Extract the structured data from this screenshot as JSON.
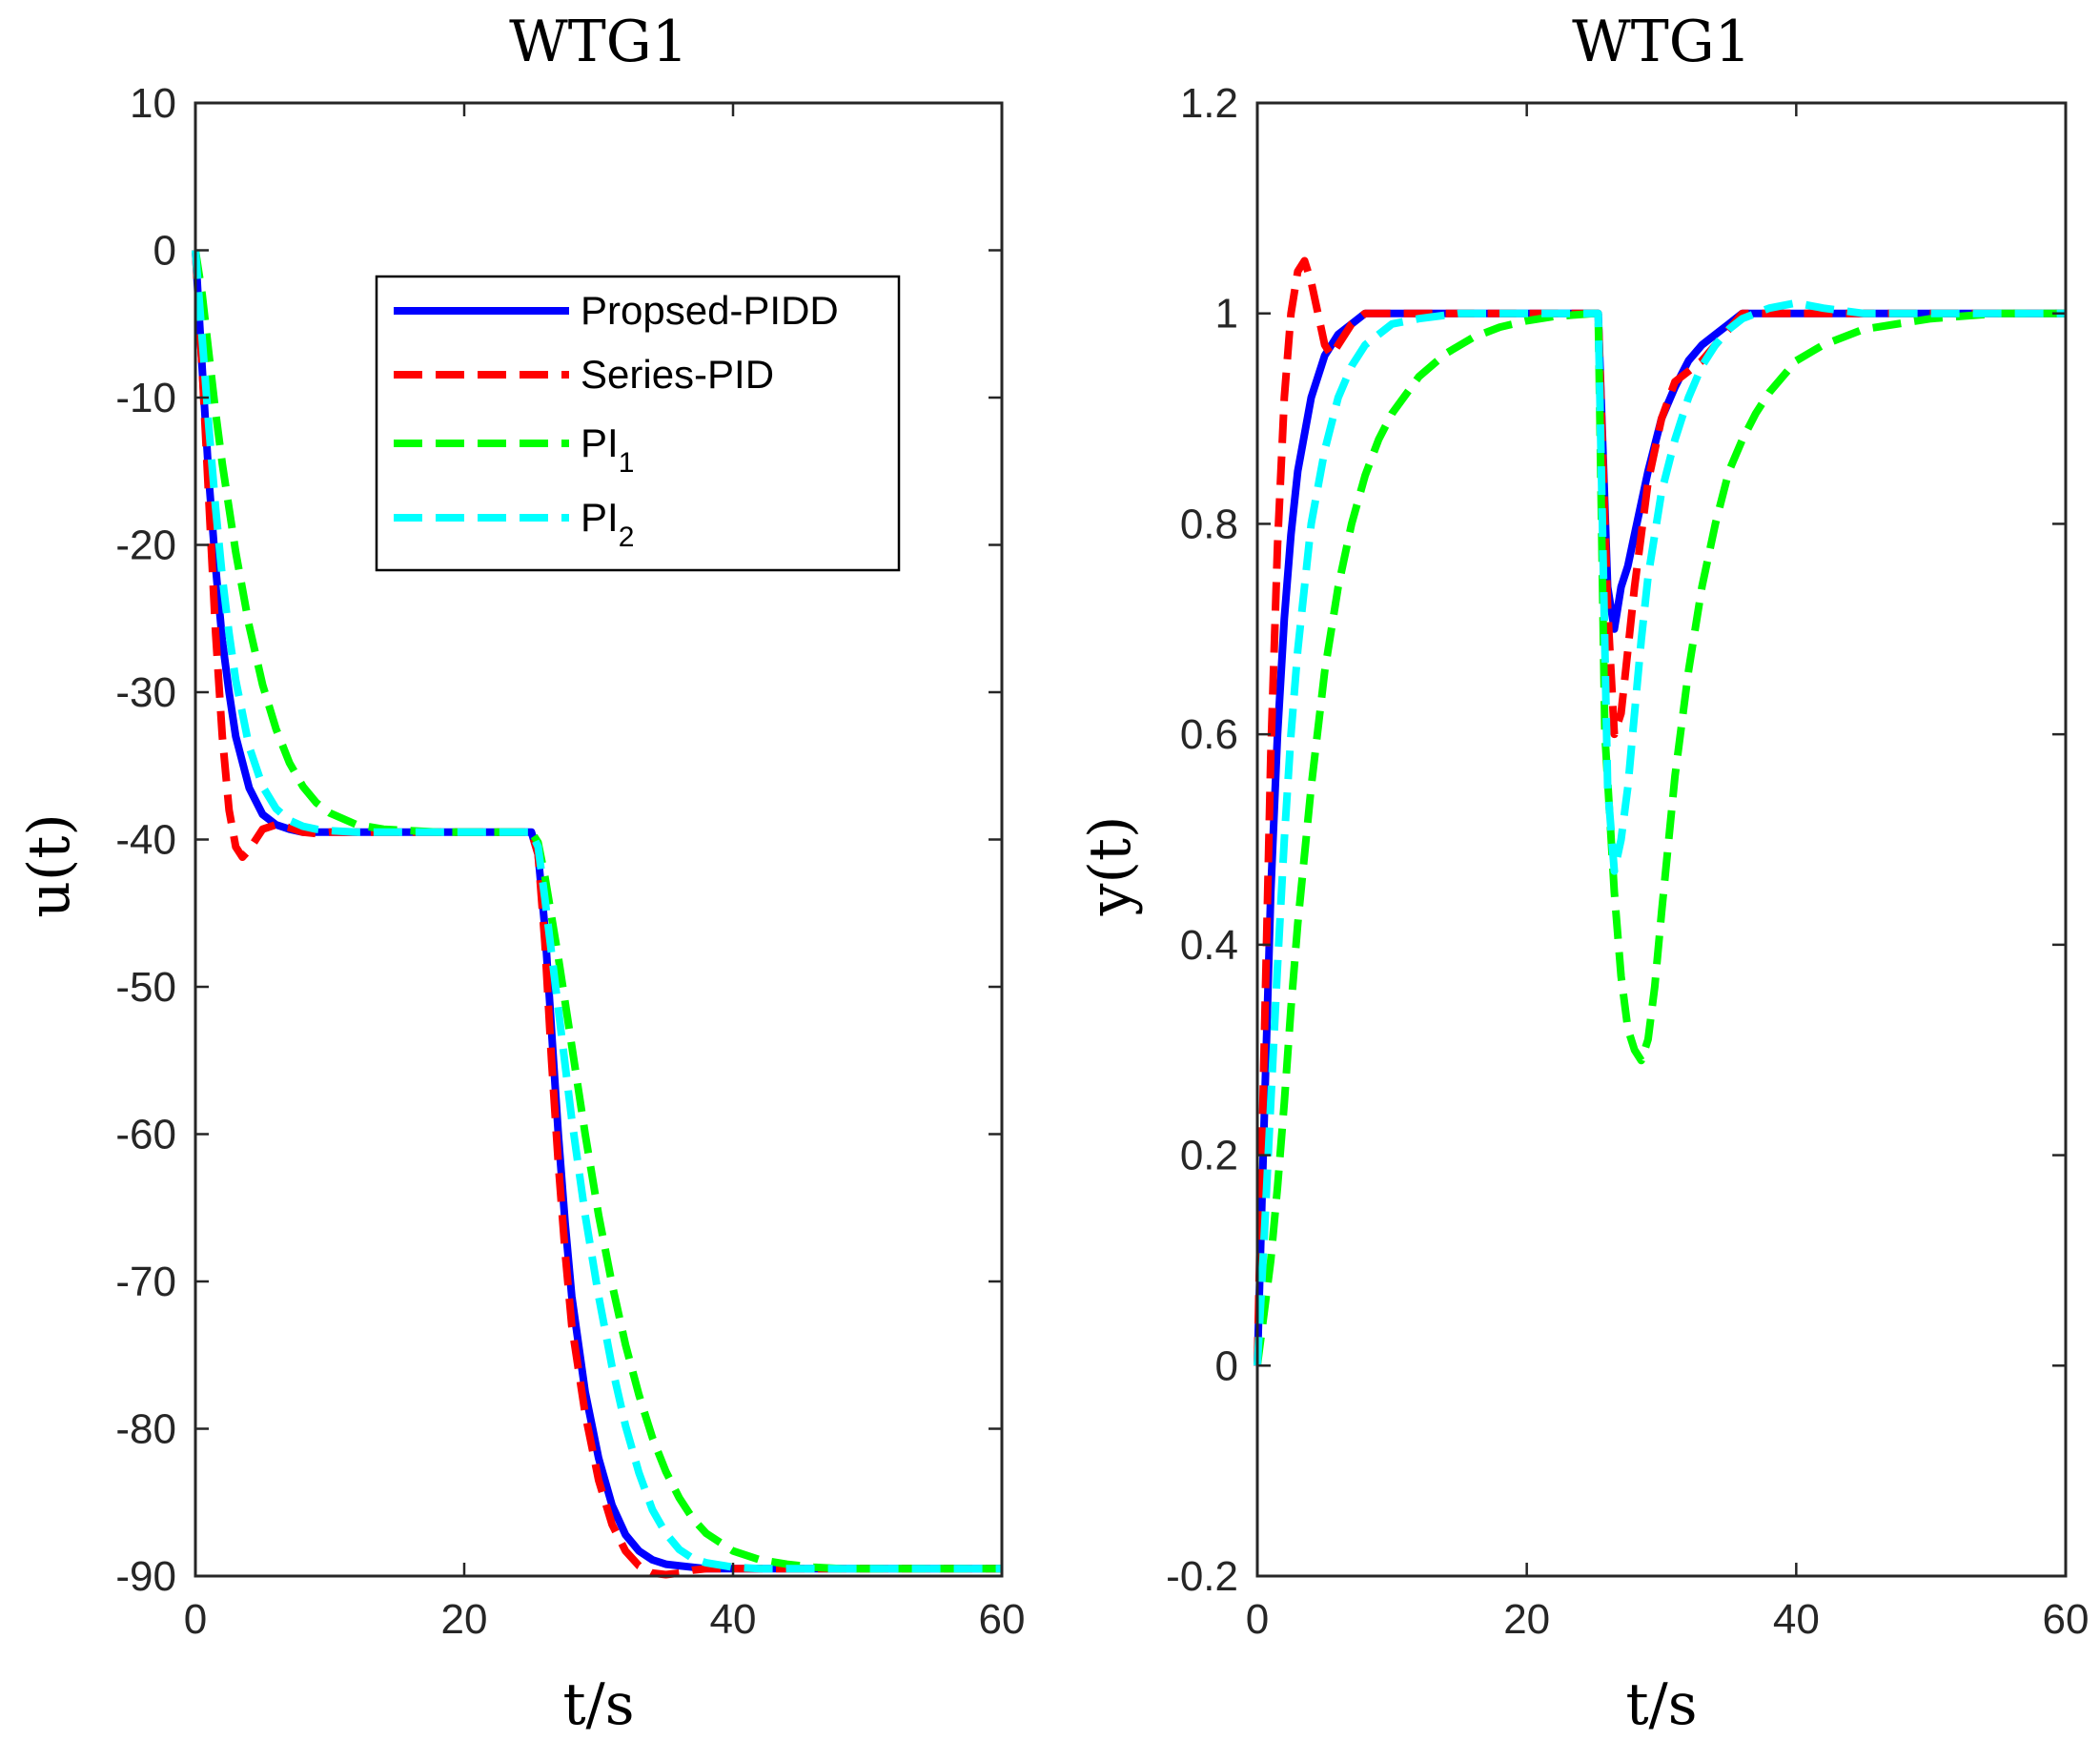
{
  "chart_data": [
    {
      "type": "line",
      "title": "WTG1",
      "xlabel": "t/s",
      "ylabel": "u(t)",
      "xlim": [
        0,
        60
      ],
      "ylim": [
        -90,
        10
      ],
      "xticks": [
        "0",
        "20",
        "40",
        "60"
      ],
      "yticks": [
        "10",
        "0",
        "-10",
        "-20",
        "-30",
        "-40",
        "-50",
        "-60",
        "-70",
        "-80",
        "-90"
      ],
      "grid": false,
      "legend": {
        "placement": "upper-center",
        "entries": [
          {
            "main": "Propsed-PIDD",
            "sub": "",
            "color": "#0000FF",
            "style": "solid"
          },
          {
            "main": "Series-PID",
            "sub": "",
            "color": "#FF0000",
            "style": "dashed"
          },
          {
            "main": "PI",
            "sub": "1",
            "color": "#00FF00",
            "style": "dashed"
          },
          {
            "main": "PI",
            "sub": "2",
            "color": "#00FFFF",
            "style": "dashed"
          }
        ]
      },
      "series": [
        {
          "key": "Propsed-PIDD",
          "color": "#0000FF",
          "style": "solid",
          "x": [
            0,
            0.5,
            1,
            1.5,
            2,
            2.5,
            3,
            4,
            5,
            6,
            7,
            8,
            10,
            15,
            20,
            25,
            25.5,
            26,
            26.5,
            27,
            27.5,
            28,
            29,
            30,
            31,
            32,
            33,
            34,
            35,
            36,
            38,
            40,
            45,
            50,
            55,
            60
          ],
          "y": [
            0,
            -8,
            -15.5,
            -21.5,
            -26.5,
            -30,
            -33,
            -36.5,
            -38.3,
            -39,
            -39.3,
            -39.5,
            -39.5,
            -39.5,
            -39.5,
            -39.5,
            -41,
            -46,
            -53,
            -60,
            -66,
            -71,
            -77.5,
            -82,
            -85.2,
            -87.2,
            -88.3,
            -88.9,
            -89.2,
            -89.3,
            -89.5,
            -89.5,
            -89.5,
            -89.5,
            -89.5,
            -89.5
          ]
        },
        {
          "key": "Series-PID",
          "color": "#FF0000",
          "style": "dashed",
          "x": [
            0,
            0.5,
            1,
            1.5,
            2,
            2.5,
            3,
            3.5,
            4,
            4.5,
            5,
            6,
            7,
            8,
            9,
            10,
            15,
            20,
            25,
            25.5,
            26,
            26.5,
            27,
            27.5,
            28,
            29,
            30,
            31,
            32,
            33,
            34,
            35,
            36,
            37,
            38,
            40,
            42,
            45,
            50,
            55,
            60
          ],
          "y": [
            0,
            -8,
            -17,
            -26,
            -33,
            -38,
            -40.5,
            -41.2,
            -40.7,
            -40,
            -39.3,
            -39,
            -39.2,
            -39.5,
            -39.6,
            -39.5,
            -39.5,
            -39.5,
            -39.5,
            -41,
            -47,
            -55,
            -62,
            -68,
            -73,
            -79,
            -83.5,
            -86.5,
            -88.3,
            -89.3,
            -89.8,
            -89.9,
            -89.8,
            -89.6,
            -89.5,
            -89.5,
            -89.5,
            -89.5,
            -89.5,
            -89.5,
            -89.5
          ]
        },
        {
          "key": "PI1",
          "color": "#00FF00",
          "style": "dashed",
          "x": [
            0,
            0.5,
            1,
            1.5,
            2,
            3,
            4,
            5,
            6,
            7,
            8,
            9,
            10,
            12,
            14,
            16,
            18,
            20,
            22,
            25,
            25.5,
            26,
            27,
            28,
            29,
            30,
            31,
            32,
            33,
            34,
            35,
            36,
            37,
            38,
            40,
            42,
            44,
            46,
            48,
            50,
            55,
            60
          ],
          "y": [
            0,
            -3,
            -7,
            -11,
            -14.5,
            -20.5,
            -25.5,
            -29.5,
            -32.5,
            -34.8,
            -36.4,
            -37.5,
            -38.2,
            -39,
            -39.3,
            -39.4,
            -39.5,
            -39.5,
            -39.5,
            -39.5,
            -40.2,
            -42.5,
            -48,
            -54,
            -60,
            -65.5,
            -70.2,
            -74.3,
            -77.7,
            -80.6,
            -82.9,
            -84.7,
            -86.1,
            -87.1,
            -88.3,
            -88.9,
            -89.2,
            -89.4,
            -89.5,
            -89.5,
            -89.5,
            -89.5
          ]
        },
        {
          "key": "PI2",
          "color": "#00FFFF",
          "style": "dashed",
          "x": [
            0,
            0.5,
            1,
            1.5,
            2,
            2.5,
            3,
            4,
            5,
            6,
            7,
            8,
            9,
            10,
            12,
            15,
            20,
            25,
            25.5,
            26,
            27,
            28,
            29,
            30,
            31,
            32,
            33,
            34,
            35,
            36,
            37,
            38,
            40,
            42,
            45,
            50,
            55,
            60
          ],
          "y": [
            0,
            -6,
            -12,
            -17.5,
            -22.2,
            -26,
            -29.2,
            -33.7,
            -36.4,
            -37.9,
            -38.7,
            -39.1,
            -39.3,
            -39.4,
            -39.5,
            -39.5,
            -39.5,
            -39.5,
            -40.5,
            -44,
            -51.5,
            -59,
            -65.5,
            -71,
            -75.8,
            -79.8,
            -83,
            -85.5,
            -87.1,
            -88.2,
            -88.8,
            -89.1,
            -89.4,
            -89.5,
            -89.5,
            -89.5,
            -89.5,
            -89.5
          ]
        }
      ]
    },
    {
      "type": "line",
      "title": "WTG1",
      "xlabel": "t/s",
      "ylabel": "y(t)",
      "xlim": [
        0,
        60
      ],
      "ylim": [
        -0.2,
        1.2
      ],
      "xticks": [
        "0",
        "20",
        "40",
        "60"
      ],
      "yticks": [
        "1.2",
        "1",
        "0.8",
        "0.6",
        "0.4",
        "0.2",
        "0",
        "-0.2"
      ],
      "grid": false,
      "series": [
        {
          "key": "Propsed-PIDD",
          "color": "#0000FF",
          "style": "solid",
          "x": [
            0,
            0.5,
            1,
            1.5,
            2,
            2.5,
            3,
            4,
            5,
            6,
            7,
            8,
            10,
            15,
            20,
            25,
            25.3,
            26,
            26.5,
            27,
            27.5,
            28,
            29,
            30,
            31,
            32,
            33,
            34,
            35,
            36,
            38,
            40,
            45,
            50,
            55,
            60
          ],
          "y": [
            0,
            0.23,
            0.45,
            0.6,
            0.71,
            0.79,
            0.85,
            0.92,
            0.96,
            0.98,
            0.99,
            1.0,
            1.0,
            1.0,
            1.0,
            1.0,
            1.0,
            0.74,
            0.7,
            0.74,
            0.76,
            0.79,
            0.85,
            0.9,
            0.93,
            0.955,
            0.97,
            0.98,
            0.99,
            1.0,
            1.0,
            1.0,
            1.0,
            1.0,
            1.0,
            1.0
          ]
        },
        {
          "key": "Series-PID",
          "color": "#FF0000",
          "style": "dashed",
          "x": [
            0,
            0.5,
            1,
            1.5,
            2,
            2.5,
            3,
            3.5,
            4,
            4.5,
            5,
            5.5,
            6,
            7,
            8,
            9,
            10,
            15,
            20,
            25,
            25.3,
            26,
            26.5,
            27,
            27.5,
            28,
            28.5,
            29,
            30,
            31,
            32,
            33,
            34,
            35,
            36,
            38,
            40,
            45,
            50,
            55,
            60
          ],
          "y": [
            0,
            0.3,
            0.58,
            0.78,
            0.92,
            1.0,
            1.04,
            1.05,
            1.03,
            1.0,
            0.97,
            0.96,
            0.97,
            0.99,
            1.0,
            1.0,
            1.0,
            1.0,
            1.0,
            1.0,
            1.0,
            0.72,
            0.6,
            0.62,
            0.68,
            0.74,
            0.79,
            0.84,
            0.9,
            0.935,
            0.945,
            0.955,
            0.97,
            0.985,
            1.0,
            1.0,
            1.0,
            1.0,
            1.0,
            1.0,
            1.0
          ]
        },
        {
          "key": "PI1",
          "color": "#00FF00",
          "style": "dashed",
          "x": [
            0,
            0.5,
            1,
            1.5,
            2,
            2.5,
            3,
            4,
            5,
            6,
            7,
            8,
            9,
            10,
            12,
            14,
            16,
            18,
            20,
            22,
            25,
            25.3,
            25.8,
            26.5,
            27,
            27.5,
            28,
            28.5,
            29,
            29.5,
            30,
            31,
            32,
            33,
            34,
            35,
            36,
            37,
            38,
            40,
            42,
            45,
            50,
            55,
            60
          ],
          "y": [
            0,
            0.05,
            0.1,
            0.17,
            0.25,
            0.34,
            0.42,
            0.55,
            0.66,
            0.74,
            0.8,
            0.846,
            0.88,
            0.905,
            0.94,
            0.962,
            0.977,
            0.987,
            0.993,
            0.997,
            1.0,
            1.0,
            0.6,
            0.45,
            0.37,
            0.32,
            0.3,
            0.29,
            0.31,
            0.36,
            0.43,
            0.56,
            0.66,
            0.74,
            0.8,
            0.85,
            0.88,
            0.905,
            0.925,
            0.955,
            0.97,
            0.985,
            0.995,
            1.0,
            1.0
          ]
        },
        {
          "key": "PI2",
          "color": "#00FFFF",
          "style": "dashed",
          "x": [
            0,
            0.5,
            1,
            1.5,
            2,
            2.5,
            3,
            4,
            5,
            6,
            7,
            8,
            9,
            10,
            12,
            15,
            20,
            25,
            25.3,
            26,
            26.5,
            27,
            27.5,
            28,
            28.5,
            29,
            30,
            31,
            32,
            33,
            34,
            35,
            36,
            38,
            40,
            42,
            45,
            50,
            55,
            60
          ],
          "y": [
            0,
            0.12,
            0.25,
            0.38,
            0.5,
            0.6,
            0.68,
            0.8,
            0.87,
            0.92,
            0.95,
            0.97,
            0.98,
            0.99,
            0.995,
            1.0,
            1.0,
            1.0,
            1.0,
            0.55,
            0.47,
            0.5,
            0.55,
            0.62,
            0.69,
            0.75,
            0.83,
            0.88,
            0.92,
            0.95,
            0.97,
            0.985,
            0.995,
            1.005,
            1.01,
            1.005,
            1.0,
            1.0,
            1.0,
            1.0
          ]
        }
      ]
    }
  ]
}
